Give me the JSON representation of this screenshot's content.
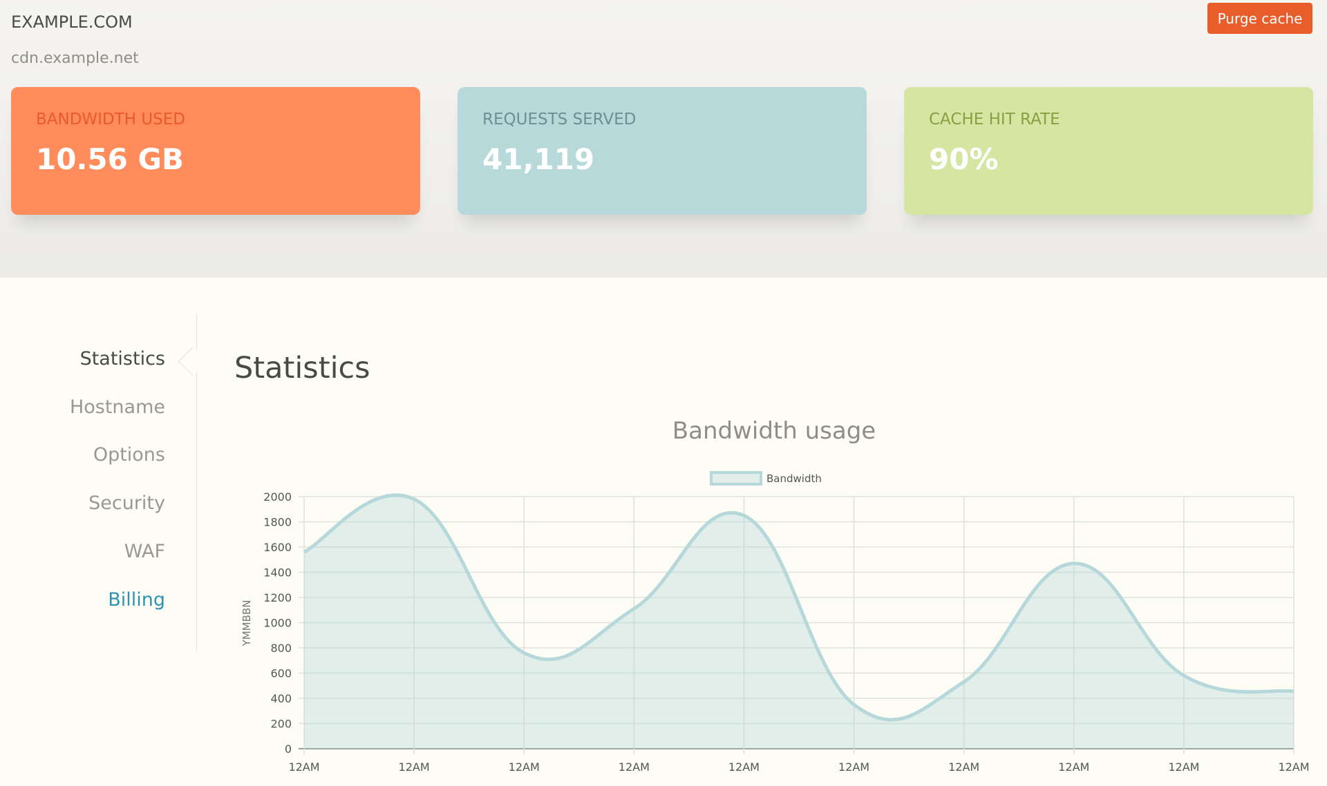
{
  "header": {
    "site": "EXAMPLE.COM",
    "hostname": "cdn.example.net",
    "purge_label": "Purge cache"
  },
  "cards": [
    {
      "label": "BANDWIDTH USED",
      "value": "10.56 GB",
      "color": "#ff8c5a"
    },
    {
      "label": "REQUESTS SERVED",
      "value": "41,119",
      "color": "#b8d9da"
    },
    {
      "label": "CACHE HIT RATE",
      "value": "90%",
      "color": "#d6e5a1"
    }
  ],
  "sidebar": {
    "items": [
      {
        "label": "Statistics"
      },
      {
        "label": "Hostname"
      },
      {
        "label": "Options"
      },
      {
        "label": "Security"
      },
      {
        "label": "WAF"
      },
      {
        "label": "Billing"
      }
    ],
    "active": "Statistics"
  },
  "main": {
    "title": "Statistics"
  },
  "chart_data": {
    "type": "area",
    "title": "Bandwidth usage",
    "ylabel": "YMMBBN",
    "xlabel": "",
    "categories": [
      "12AM",
      "12AM",
      "12AM",
      "12AM",
      "12AM",
      "12AM",
      "12AM",
      "12AM",
      "12AM",
      "12AM"
    ],
    "series": [
      {
        "name": "Bandwidth",
        "values": [
          1560,
          1980,
          760,
          1110,
          1850,
          350,
          530,
          1470,
          580,
          455
        ],
        "color": "#b6d8da"
      }
    ],
    "ylim": [
      0,
      2000
    ],
    "yticks": [
      "0",
      "200",
      "400",
      "600",
      "800",
      "1000",
      "1200",
      "1400",
      "1600",
      "1800",
      "2000"
    ],
    "grid": true,
    "legend": "top"
  }
}
